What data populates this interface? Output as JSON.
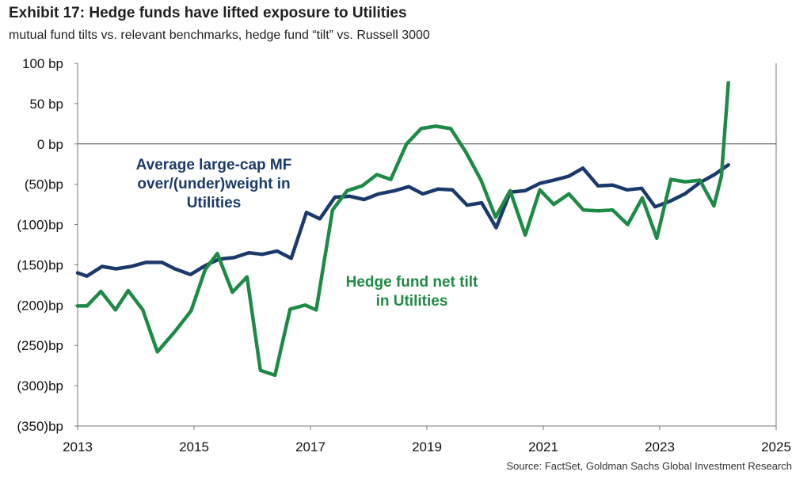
{
  "header": {
    "title": "Exhibit 17: Hedge funds have lifted exposure to Utilities",
    "subtitle": "mutual fund tilts vs. relevant benchmarks, hedge fund “tilt” vs. Russell 3000"
  },
  "footer": {
    "source": "Source: FactSet, Goldman Sachs Global Investment Research"
  },
  "chart_data": {
    "type": "line",
    "title": "Exhibit 17: Hedge funds have lifted exposure to Utilities",
    "subtitle": "mutual fund tilts vs. relevant benchmarks, hedge fund “tilt” vs. Russell 3000",
    "xlim": [
      2013,
      2025
    ],
    "ylim": [
      -350,
      100
    ],
    "x_ticks": [
      2013,
      2015,
      2017,
      2019,
      2021,
      2023,
      2025
    ],
    "y_ticks": [
      100,
      50,
      0,
      -50,
      -100,
      -150,
      -200,
      -250,
      -300,
      -350
    ],
    "y_tick_labels": [
      "100 bp",
      "50 bp",
      "0 bp",
      "(50)bp",
      "(100)bp",
      "(150)bp",
      "(200)bp",
      "(250)bp",
      "(300)bp",
      "(350)bp"
    ],
    "grid": false,
    "zero_line": true,
    "annotations": [
      {
        "lines": [
          "Average large-cap MF",
          "over/(under)weight in",
          "Utilities"
        ],
        "series": 0
      },
      {
        "lines": [
          "Hedge fund net tilt",
          "in Utilities"
        ],
        "series": 1
      }
    ],
    "series": [
      {
        "color": "#1b3a6b",
        "x": [
          2013.0,
          2013.16,
          2013.42,
          2013.66,
          2013.92,
          2014.17,
          2014.45,
          2014.67,
          2014.94,
          2015.19,
          2015.43,
          2015.69,
          2015.94,
          2016.17,
          2016.43,
          2016.67,
          2016.93,
          2017.16,
          2017.42,
          2017.68,
          2017.92,
          2018.17,
          2018.45,
          2018.69,
          2018.93,
          2019.19,
          2019.44,
          2019.69,
          2019.94,
          2020.19,
          2020.43,
          2020.69,
          2020.94,
          2021.18,
          2021.44,
          2021.68,
          2021.94,
          2022.19,
          2022.44,
          2022.69,
          2022.92,
          2023.18,
          2023.43,
          2023.69,
          2023.94,
          2024.18
        ],
        "y": [
          -160,
          -164,
          -152,
          -155,
          -152,
          -147,
          -147,
          -155,
          -162,
          -151,
          -143,
          -141,
          -135,
          -137,
          -133,
          -142,
          -85,
          -93,
          -66,
          -65,
          -69,
          -62,
          -58,
          -53,
          -62,
          -56,
          -57,
          -76,
          -73,
          -104,
          -60,
          -58,
          -49,
          -45,
          -40,
          -30,
          -52,
          -51,
          -57,
          -55,
          -78,
          -71,
          -62,
          -48,
          -38,
          -26
        ]
      },
      {
        "color": "#1f8a45",
        "x": [
          2013.0,
          2013.16,
          2013.4,
          2013.65,
          2013.87,
          2014.12,
          2014.37,
          2014.67,
          2014.95,
          2015.19,
          2015.4,
          2015.66,
          2015.91,
          2016.14,
          2016.39,
          2016.65,
          2016.91,
          2017.1,
          2017.38,
          2017.63,
          2017.89,
          2018.14,
          2018.38,
          2018.65,
          2018.9,
          2019.15,
          2019.41,
          2019.67,
          2019.93,
          2020.18,
          2020.43,
          2020.69,
          2020.94,
          2021.18,
          2021.44,
          2021.69,
          2021.94,
          2022.19,
          2022.45,
          2022.7,
          2022.95,
          2023.19,
          2023.44,
          2023.69,
          2023.93,
          2024.06,
          2024.18
        ],
        "y": [
          -201,
          -201,
          -183,
          -206,
          -182,
          -206,
          -258,
          -233,
          -207,
          -156,
          -136,
          -184,
          -165,
          -281,
          -287,
          -205,
          -200,
          -206,
          -82,
          -58,
          -52,
          -38,
          -44,
          0,
          19,
          22,
          19,
          -10,
          -45,
          -91,
          -58,
          -113,
          -57,
          -75,
          -62,
          -82,
          -83,
          -82,
          -100,
          -67,
          -117,
          -44,
          -47,
          -45,
          -77,
          -40,
          76
        ]
      }
    ]
  }
}
